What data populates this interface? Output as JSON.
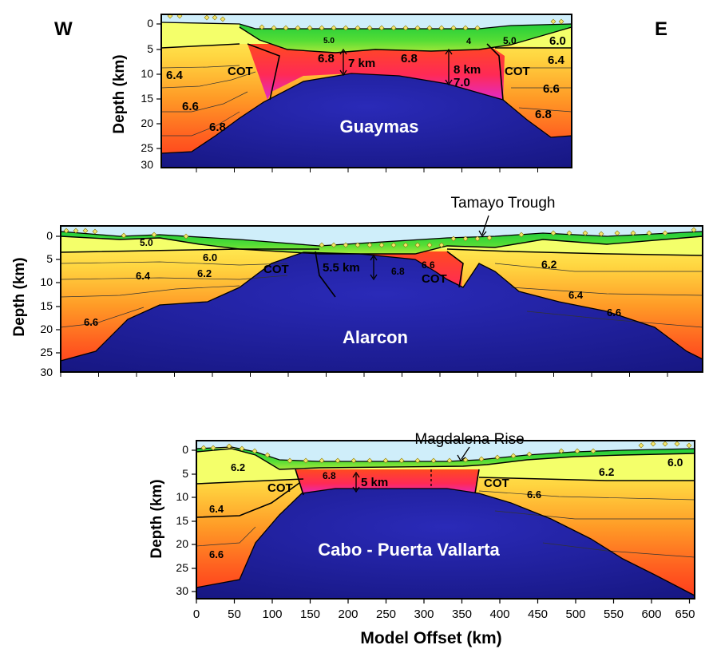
{
  "labels": {
    "west": "W",
    "east": "E",
    "y_axis": "Depth (km)",
    "x_axis": "Model Offset (km)",
    "tamayo": "Tamayo Trough",
    "magdalena": "Magdalena Rise"
  },
  "x_ticks": [
    "0",
    "50",
    "100",
    "150",
    "200",
    "250",
    "300",
    "350",
    "400",
    "450",
    "500",
    "550",
    "600",
    "650"
  ],
  "panels": [
    {
      "name": "Guaymas",
      "y_ticks": [
        "0",
        "5",
        "10",
        "15",
        "20",
        "25",
        "30"
      ],
      "velocity_labels": [
        "5.0",
        "4",
        "5.0",
        "6.0",
        "6.4",
        "6.8",
        "6.8",
        "7.0",
        "6.4",
        "6.6",
        "6.8",
        "6.6",
        "6.8"
      ],
      "cot_labels": [
        "COT",
        "COT"
      ],
      "thickness_labels": [
        "7 km",
        "8 km"
      ]
    },
    {
      "name": "Alarcon",
      "y_ticks": [
        "0",
        "5",
        "10",
        "15",
        "20",
        "25",
        "30"
      ],
      "velocity_labels": [
        "5.0",
        "6.0",
        "6.4",
        "6.2",
        "6.6",
        "6.8",
        "6.6",
        "6.2",
        "6.4",
        "6.6"
      ],
      "cot_labels": [
        "COT",
        "COT"
      ],
      "thickness_labels": [
        "5.5 km"
      ]
    },
    {
      "name": "Cabo - Puerta Vallarta",
      "y_ticks": [
        "0",
        "5",
        "10",
        "15",
        "20",
        "25",
        "30"
      ],
      "velocity_labels": [
        "6.2",
        "6.4",
        "6.6",
        "6.8",
        "6.2",
        "6.6",
        "6.0"
      ],
      "cot_labels": [
        "COT",
        "COT"
      ],
      "thickness_labels": [
        "5 km"
      ]
    }
  ],
  "colors": {
    "mantle": "#1f1f96",
    "water": "#cfeefa",
    "frame": "#000000",
    "station": "#f4e56a"
  }
}
